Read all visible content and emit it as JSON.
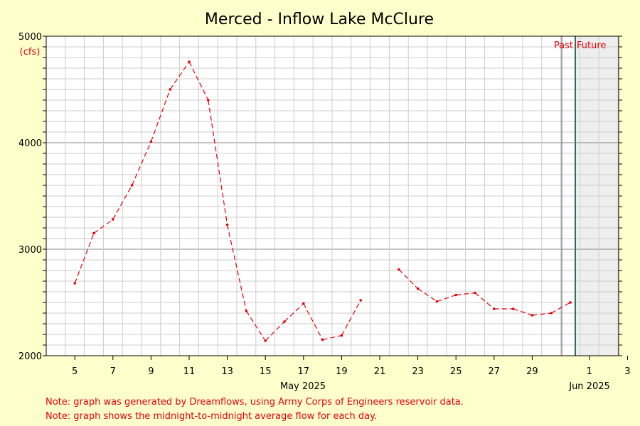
{
  "chart_data": {
    "type": "line",
    "title": "Merced - Inflow Lake McClure",
    "ylabel": "(cfs)",
    "xlabel": "",
    "ylim": [
      2000,
      5000
    ],
    "y_ticks": [
      2000,
      3000,
      4000,
      5000
    ],
    "grid": true,
    "x_tick_labels": [
      "5",
      "7",
      "9",
      "11",
      "13",
      "15",
      "17",
      "19",
      "21",
      "23",
      "25",
      "27",
      "29",
      "1",
      "3"
    ],
    "month_labels": [
      "May 2025",
      "Jun 2025"
    ],
    "past_label": "Past",
    "future_label": "Future",
    "series": [
      {
        "color": "#e8000b",
        "x": [
          "2025-05-05",
          "2025-05-06",
          "2025-05-07",
          "2025-05-08",
          "2025-05-09",
          "2025-05-10",
          "2025-05-11",
          "2025-05-12",
          "2025-05-13",
          "2025-05-14",
          "2025-05-15",
          "2025-05-16",
          "2025-05-17",
          "2025-05-18",
          "2025-05-19",
          "2025-05-20",
          "2025-05-21",
          "2025-05-22",
          "2025-05-23",
          "2025-05-24",
          "2025-05-25",
          "2025-05-26",
          "2025-05-27",
          "2025-05-28",
          "2025-05-29",
          "2025-05-30",
          "2025-05-31"
        ],
        "values": [
          2680,
          3150,
          3280,
          3600,
          4010,
          4500,
          4760,
          4400,
          3230,
          2420,
          2140,
          2320,
          2490,
          2150,
          2190,
          2520,
          null,
          2810,
          2630,
          2510,
          2570,
          2590,
          2440,
          2440,
          2380,
          2400,
          2500
        ]
      }
    ]
  },
  "notes": [
    "Note: graph was generated by Dreamflows, using Army Corps of Engineers reservoir data.",
    "Note: graph shows the midnight-to-midnight average flow for each day."
  ],
  "colors": {
    "background": "#ffffcc",
    "plot_background": "#ffffff",
    "future_shade": "#eeeeee",
    "series": "#e8000b",
    "today_line": "#2e6e5a"
  }
}
